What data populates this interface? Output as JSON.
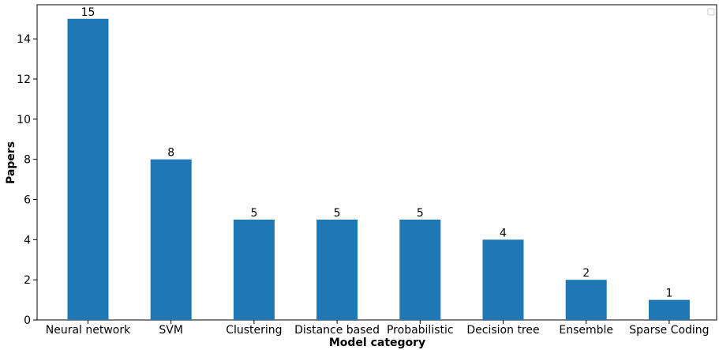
{
  "chart_data": {
    "type": "bar",
    "title": "",
    "xlabel": "Model category",
    "ylabel": "Papers",
    "categories": [
      "Neural network",
      "SVM",
      "Clustering",
      "Distance based",
      "Probabilistic",
      "Decision tree",
      "Ensemble",
      "Sparse Coding"
    ],
    "values": [
      15,
      8,
      5,
      5,
      5,
      4,
      2,
      1
    ],
    "data_labels": [
      "15",
      "8",
      "5",
      "5",
      "5",
      "4",
      "2",
      "1"
    ],
    "ylim": [
      0,
      15.7
    ],
    "yticks": [
      0,
      2,
      4,
      6,
      8,
      10,
      12,
      14
    ],
    "grid": false,
    "legend": "top-right (empty)",
    "bar_color": "#1f77b4"
  }
}
